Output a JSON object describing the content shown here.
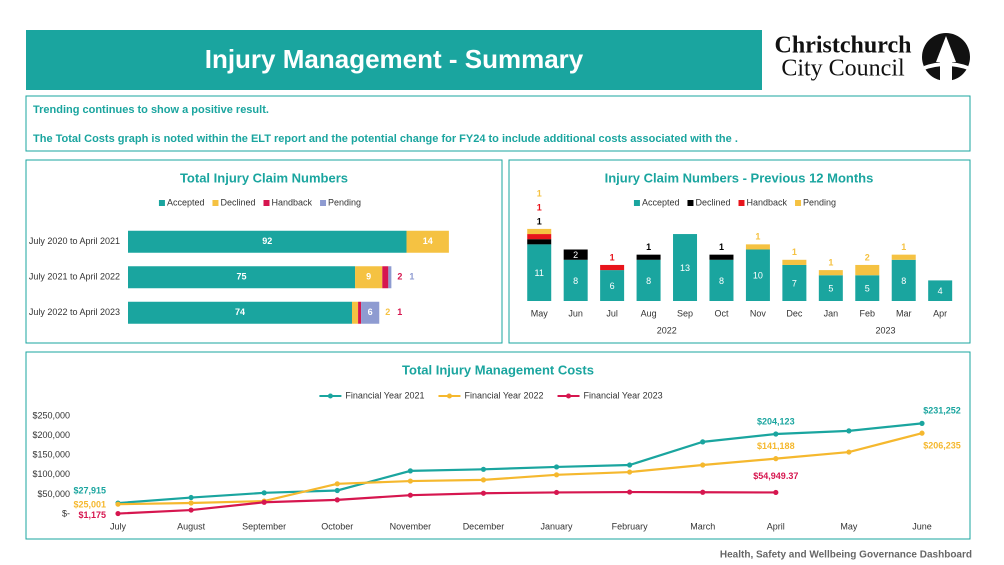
{
  "header": {
    "title": "Injury Management - Summary",
    "logo": [
      "Christchurch",
      "City Council"
    ]
  },
  "notes": [
    "Trending continues to show a positive result.",
    "The Total Costs graph is noted within the ELT report and the potential change for FY24 to include additional costs associated with the ."
  ],
  "footer": "Health, Safety and Wellbeing Governance Dashboard",
  "chart_data": [
    {
      "type": "bar",
      "orientation": "horizontal",
      "stacked": true,
      "title": "Total Injury Claim Numbers",
      "categories": [
        "July 2020 to April 2021",
        "July 2021 to April 2022",
        "July 2022 to April 2023"
      ],
      "series": [
        {
          "name": "Accepted",
          "color": "#1aa59f",
          "values": [
            92,
            75,
            74
          ]
        },
        {
          "name": "Declined",
          "color": "#f5c242",
          "values": [
            14,
            9,
            2
          ]
        },
        {
          "name": "Handback",
          "color": "#d6164f",
          "values": [
            0,
            2,
            1
          ]
        },
        {
          "name": "Pending",
          "color": "#8e9bd1",
          "values": [
            0,
            1,
            6
          ]
        }
      ],
      "xlim": [
        0,
        110
      ],
      "legend": "top"
    },
    {
      "type": "bar",
      "stacked": true,
      "title": "Injury Claim Numbers - Previous 12 Months",
      "categories": [
        "May",
        "Jun",
        "Jul",
        "Aug",
        "Sep",
        "Oct",
        "Nov",
        "Dec",
        "Jan",
        "Feb",
        "Mar",
        "Apr"
      ],
      "category_groups": [
        {
          "label": "2022",
          "count": 8
        },
        {
          "label": "2023",
          "count": 4
        }
      ],
      "series": [
        {
          "name": "Accepted",
          "color": "#1aa59f",
          "values": [
            11,
            8,
            6,
            8,
            13,
            8,
            10,
            7,
            5,
            5,
            8,
            4
          ]
        },
        {
          "name": "Declined",
          "color": "#000000",
          "values": [
            1,
            2,
            0,
            1,
            0,
            1,
            0,
            0,
            0,
            0,
            0,
            0
          ]
        },
        {
          "name": "Handback",
          "color": "#e8141b",
          "values": [
            1,
            0,
            1,
            0,
            0,
            0,
            0,
            0,
            0,
            0,
            0,
            0
          ]
        },
        {
          "name": "Pending",
          "color": "#f5c242",
          "values": [
            1,
            0,
            0,
            0,
            0,
            0,
            1,
            1,
            1,
            2,
            1,
            0
          ]
        }
      ],
      "ylim": [
        0,
        16
      ],
      "legend": "top"
    },
    {
      "type": "line",
      "title": "Total Injury Management Costs",
      "categories": [
        "July",
        "August",
        "September",
        "October",
        "November",
        "December",
        "January",
        "February",
        "March",
        "April",
        "May",
        "June"
      ],
      "series": [
        {
          "name": "Financial Year 2021",
          "color": "#1aa59f",
          "values": [
            27915,
            42000,
            54000,
            60000,
            110000,
            114000,
            120000,
            125000,
            184000,
            204123,
            212000,
            231252
          ],
          "value_labels": [
            "$27,915",
            null,
            null,
            null,
            null,
            null,
            null,
            null,
            null,
            "$204,123",
            null,
            "$231,252"
          ]
        },
        {
          "name": "Financial Year 2022",
          "color": "#f5b82e",
          "values": [
            25001,
            28000,
            33000,
            77000,
            84000,
            87000,
            100000,
            107000,
            125000,
            141188,
            158000,
            206235
          ],
          "value_labels": [
            "$25,001",
            null,
            null,
            null,
            null,
            null,
            null,
            null,
            null,
            "$141,188",
            null,
            "$206,235"
          ]
        },
        {
          "name": "Financial Year 2023",
          "color": "#d6164f",
          "values": [
            1175,
            10000,
            30000,
            36000,
            48000,
            53000,
            55000,
            56000,
            55500,
            54949.37,
            null,
            null
          ],
          "value_labels": [
            "$1,175",
            null,
            null,
            null,
            null,
            null,
            null,
            null,
            null,
            "$54,949.37",
            null,
            null
          ]
        }
      ],
      "ylim": [
        0,
        250000
      ],
      "yticks": [
        {
          "value": 0,
          "label": "$-"
        },
        {
          "value": 50000,
          "label": "$50,000"
        },
        {
          "value": 100000,
          "label": "$100,000"
        },
        {
          "value": 150000,
          "label": "$150,000"
        },
        {
          "value": 200000,
          "label": "$200,000"
        },
        {
          "value": 250000,
          "label": "$250,000"
        }
      ],
      "grid": false,
      "legend": "top"
    }
  ]
}
